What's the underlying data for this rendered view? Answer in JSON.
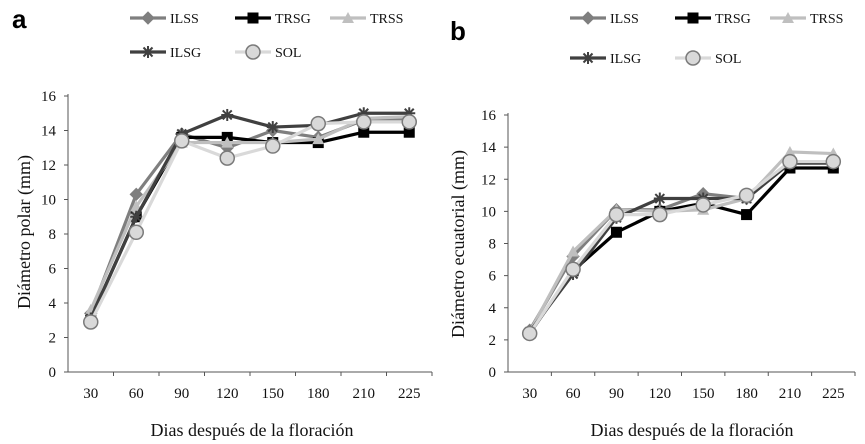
{
  "chart_data": [
    {
      "panel": "a",
      "type": "line",
      "xlabel": "Dias después de la floración",
      "ylabel": "Diámetro polar (mm)",
      "categories": [
        "30",
        "60",
        "90",
        "120",
        "150",
        "180",
        "210",
        "225"
      ],
      "ylim": [
        0,
        16
      ],
      "yticks": [
        "0",
        "2",
        "4",
        "6",
        "8",
        "10",
        "12",
        "14",
        "16"
      ],
      "grid": false,
      "legend_position": "top",
      "series": [
        {
          "name": "ILSS",
          "color": "#7f7f7f",
          "marker": "diamond",
          "values": [
            3.4,
            10.3,
            13.8,
            13.0,
            14.0,
            13.6,
            14.6,
            14.6
          ]
        },
        {
          "name": "TRSG",
          "color": "#000000",
          "marker": "square",
          "values": [
            3.1,
            9.0,
            13.6,
            13.6,
            13.3,
            13.3,
            13.9,
            13.9
          ]
        },
        {
          "name": "TRSS",
          "color": "#bfbfbf",
          "marker": "triangle",
          "values": [
            3.6,
            9.6,
            13.3,
            13.3,
            13.3,
            13.5,
            14.7,
            14.8
          ]
        },
        {
          "name": "ILSG",
          "color": "#404040",
          "marker": "star",
          "values": [
            3.1,
            9.0,
            13.8,
            14.9,
            14.2,
            14.3,
            15.0,
            15.0
          ]
        },
        {
          "name": "SOL",
          "color": "#d9d9d9",
          "marker": "circle",
          "values": [
            2.9,
            8.1,
            13.4,
            12.4,
            13.1,
            14.4,
            14.5,
            14.5
          ]
        }
      ]
    },
    {
      "panel": "b",
      "type": "line",
      "xlabel": "Dias después de la floración",
      "ylabel": "Diámetro ecuatorial (mm)",
      "categories": [
        "30",
        "60",
        "90",
        "120",
        "150",
        "180",
        "210",
        "225"
      ],
      "ylim": [
        0,
        16
      ],
      "yticks": [
        "0",
        "2",
        "4",
        "6",
        "8",
        "10",
        "12",
        "14",
        "16"
      ],
      "grid": false,
      "legend_position": "top",
      "series": [
        {
          "name": "ILSS",
          "color": "#7f7f7f",
          "marker": "diamond",
          "values": [
            2.6,
            7.2,
            10.1,
            10.1,
            11.1,
            10.8,
            13.1,
            13.0
          ]
        },
        {
          "name": "TRSG",
          "color": "#000000",
          "marker": "square",
          "values": [
            2.4,
            6.3,
            8.7,
            10.0,
            10.5,
            9.8,
            12.7,
            12.7
          ]
        },
        {
          "name": "TRSS",
          "color": "#bfbfbf",
          "marker": "triangle",
          "values": [
            2.5,
            7.5,
            10.1,
            10.0,
            10.1,
            10.8,
            13.7,
            13.6
          ]
        },
        {
          "name": "ILSG",
          "color": "#404040",
          "marker": "star",
          "values": [
            2.5,
            6.1,
            9.6,
            10.8,
            10.8,
            10.8,
            13.0,
            13.0
          ]
        },
        {
          "name": "SOL",
          "color": "#d9d9d9",
          "marker": "circle",
          "values": [
            2.4,
            6.4,
            9.8,
            9.8,
            10.4,
            11.0,
            13.1,
            13.1
          ]
        }
      ]
    }
  ]
}
